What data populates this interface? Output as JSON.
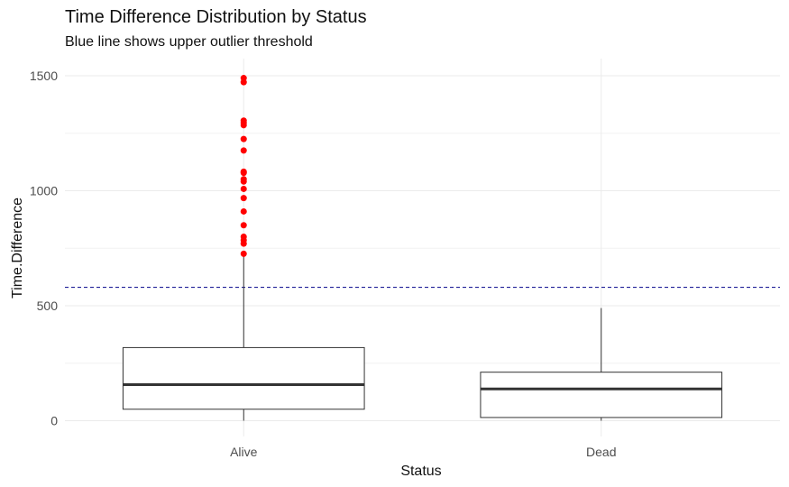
{
  "chart_data": {
    "type": "boxplot",
    "title": "Time Difference Distribution by Status",
    "subtitle": "Blue line shows upper outlier threshold",
    "xlabel": "Status",
    "ylabel": "Time.Difference",
    "categories": [
      "Alive",
      "Dead"
    ],
    "ylim": [
      -75,
      1575
    ],
    "yticks": [
      0,
      500,
      1000,
      1500
    ],
    "grid": true,
    "threshold": {
      "value": 580,
      "color": "#00008b",
      "style": "dashed"
    },
    "boxes": [
      {
        "category": "Alive",
        "min": 0,
        "q1": 50,
        "median": 157,
        "q3": 318,
        "max": 722,
        "outliers": [
          1490,
          1472,
          1305,
          1295,
          1285,
          1225,
          1175,
          1083,
          1078,
          1050,
          1040,
          1008,
          968,
          910,
          850,
          800,
          785,
          770,
          726
        ]
      },
      {
        "category": "Dead",
        "min": 0,
        "q1": 14,
        "median": 138,
        "q3": 211,
        "max": 490,
        "outliers": []
      }
    ],
    "colors": {
      "outlier": "#ff0000",
      "box": "#333333",
      "grid": "#ebebeb"
    }
  }
}
